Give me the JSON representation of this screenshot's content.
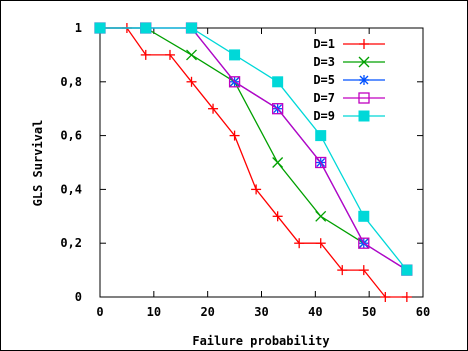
{
  "chart_data": {
    "type": "line",
    "title": "",
    "xlabel": "Failure probability",
    "ylabel": "GLS Survival",
    "xlim": [
      0,
      60
    ],
    "ylim": [
      0,
      1
    ],
    "x_ticks": [
      0,
      10,
      20,
      30,
      40,
      50,
      60
    ],
    "x_tick_labels": [
      "0",
      "10",
      "20",
      "30",
      "40",
      "50",
      "60"
    ],
    "y_ticks": [
      0,
      0.2,
      0.4,
      0.6,
      0.8,
      1
    ],
    "y_tick_labels": [
      "0",
      "0,2",
      "0,4",
      "0,6",
      "0,8",
      "1"
    ],
    "grid": false,
    "legend_position": "top-right",
    "series": [
      {
        "name": "D=1",
        "color": "#ff0000",
        "marker": "plus",
        "points": [
          [
            0,
            1
          ],
          [
            5,
            1
          ],
          [
            8.5,
            0.9
          ],
          [
            13,
            0.9
          ],
          [
            17,
            0.8
          ],
          [
            21,
            0.7
          ],
          [
            25,
            0.6
          ],
          [
            29,
            0.4
          ],
          [
            33,
            0.3
          ],
          [
            37,
            0.2
          ],
          [
            41,
            0.2
          ],
          [
            45,
            0.1
          ],
          [
            49,
            0.1
          ],
          [
            53,
            0
          ],
          [
            57,
            0
          ]
        ]
      },
      {
        "name": "D=3",
        "color": "#00a000",
        "marker": "cross",
        "points": [
          [
            0,
            1
          ],
          [
            8.5,
            1
          ],
          [
            17,
            0.9
          ],
          [
            25,
            0.8
          ],
          [
            33,
            0.5
          ],
          [
            41,
            0.3
          ],
          [
            49,
            0.2
          ]
        ]
      },
      {
        "name": "D=5",
        "color": "#0050ff",
        "marker": "star",
        "points": [
          [
            0,
            1
          ],
          [
            8.5,
            1
          ],
          [
            17,
            1
          ],
          [
            25,
            0.8
          ],
          [
            33,
            0.7
          ],
          [
            41,
            0.5
          ],
          [
            49,
            0.2
          ],
          [
            57,
            0.1
          ]
        ]
      },
      {
        "name": "D=7",
        "color": "#c000c0",
        "marker": "open-square",
        "points": [
          [
            0,
            1
          ],
          [
            8.5,
            1
          ],
          [
            17,
            1
          ],
          [
            25,
            0.8
          ],
          [
            33,
            0.7
          ],
          [
            41,
            0.5
          ],
          [
            49,
            0.2
          ],
          [
            57,
            0.1
          ]
        ]
      },
      {
        "name": "D=9",
        "color": "#00d8d8",
        "marker": "filled-square",
        "points": [
          [
            0,
            1
          ],
          [
            8.5,
            1
          ],
          [
            17,
            1
          ],
          [
            25,
            0.9
          ],
          [
            33,
            0.8
          ],
          [
            41,
            0.6
          ],
          [
            49,
            0.3
          ],
          [
            57,
            0.1
          ]
        ]
      }
    ]
  }
}
